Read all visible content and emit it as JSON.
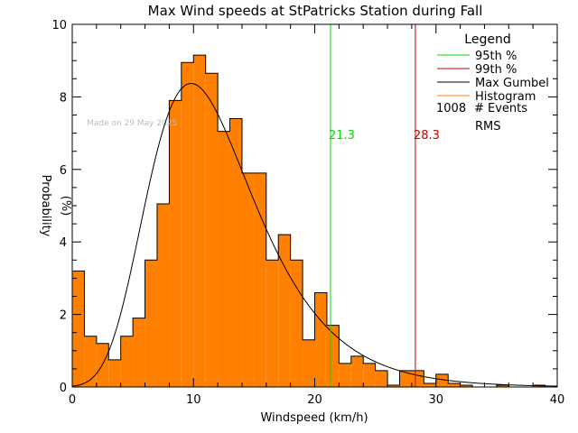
{
  "chart_data": {
    "type": "bar",
    "title": "Max Wind speeds at StPatricks Station during Fall",
    "xlabel": "Windspeed (km/h)",
    "ylabel_line1": "Probability",
    "ylabel_line2": "(%)",
    "xlim": [
      0,
      40
    ],
    "ylim": [
      0,
      10
    ],
    "x_ticks": [
      0,
      10,
      20,
      30,
      40
    ],
    "y_ticks": [
      0,
      2,
      4,
      6,
      8,
      10
    ],
    "bin_width": 1.0,
    "bins": [
      {
        "x0": 0,
        "value": 3.2
      },
      {
        "x0": 1,
        "value": 1.4
      },
      {
        "x0": 2,
        "value": 1.2
      },
      {
        "x0": 3,
        "value": 0.75
      },
      {
        "x0": 4,
        "value": 1.4
      },
      {
        "x0": 5,
        "value": 1.9
      },
      {
        "x0": 6,
        "value": 3.5
      },
      {
        "x0": 7,
        "value": 5.05
      },
      {
        "x0": 8,
        "value": 7.9
      },
      {
        "x0": 9,
        "value": 8.95
      },
      {
        "x0": 10,
        "value": 9.15
      },
      {
        "x0": 11,
        "value": 8.65
      },
      {
        "x0": 12,
        "value": 7.05
      },
      {
        "x0": 13,
        "value": 7.4
      },
      {
        "x0": 14,
        "value": 5.9
      },
      {
        "x0": 15,
        "value": 5.9
      },
      {
        "x0": 16,
        "value": 3.5
      },
      {
        "x0": 17,
        "value": 4.2
      },
      {
        "x0": 18,
        "value": 3.5
      },
      {
        "x0": 19,
        "value": 1.3
      },
      {
        "x0": 20,
        "value": 2.6
      },
      {
        "x0": 21,
        "value": 1.7
      },
      {
        "x0": 22,
        "value": 0.65
      },
      {
        "x0": 23,
        "value": 0.85
      },
      {
        "x0": 24,
        "value": 0.65
      },
      {
        "x0": 25,
        "value": 0.45
      },
      {
        "x0": 26,
        "value": 0.05
      },
      {
        "x0": 27,
        "value": 0.45
      },
      {
        "x0": 28,
        "value": 0.45
      },
      {
        "x0": 29,
        "value": 0.1
      },
      {
        "x0": 30,
        "value": 0.35
      },
      {
        "x0": 31,
        "value": 0.1
      },
      {
        "x0": 32,
        "value": 0.05
      },
      {
        "x0": 33,
        "value": 0.0
      },
      {
        "x0": 34,
        "value": 0.0
      },
      {
        "x0": 35,
        "value": 0.05
      },
      {
        "x0": 36,
        "value": 0.0
      },
      {
        "x0": 37,
        "value": 0.0
      },
      {
        "x0": 38,
        "value": 0.05
      },
      {
        "x0": 39,
        "value": 0.0
      }
    ],
    "gumbel_curve": {
      "mode": 9.8,
      "scale": 4.4,
      "peak_percent": 8.37,
      "x_range": [
        0,
        40
      ]
    },
    "percentile_lines": [
      {
        "name": "95th %",
        "x": 21.3,
        "label": "21.3",
        "color": "#00dd00"
      },
      {
        "name": "99th %",
        "x": 28.3,
        "label": "28.3",
        "color": "#cc0000"
      }
    ],
    "legend": {
      "title": "Legend",
      "position": "top-right",
      "entries": [
        {
          "label": "95th %",
          "color": "#00dd00"
        },
        {
          "label": "99th %",
          "color": "#cc0000"
        },
        {
          "label": "Max Gumbel",
          "color": "#000000"
        },
        {
          "label": "Histogram",
          "color": "#ff8000"
        }
      ],
      "events_count": "1008",
      "events_label": "# Events",
      "rms_label": "RMS"
    },
    "watermark": "Made on 29 May 2025",
    "colors": {
      "histogram_fill": "#ff8000",
      "axis": "#000000",
      "curve": "#000000"
    }
  }
}
